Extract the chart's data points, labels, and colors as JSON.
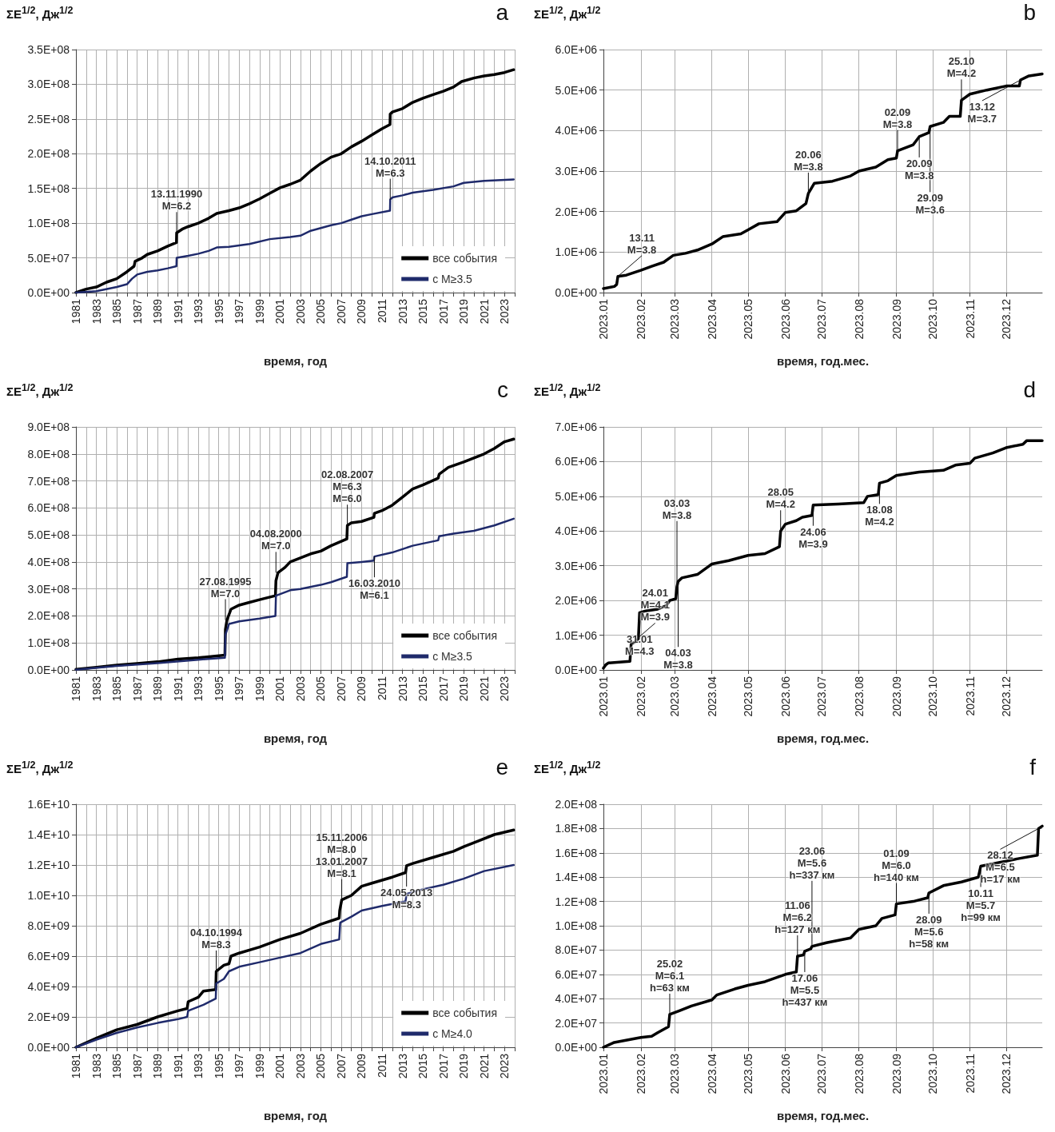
{
  "chart_data": [
    {
      "type": "line",
      "title": "a",
      "ylabel": "ΣE$^{1/2}$, Дж$^{1/2}$",
      "xlabel": "время, год",
      "grid": true,
      "legend": "bottom right",
      "xlim": [
        1981,
        2024
      ],
      "xticks": [
        1981,
        {
          "value": 1982,
          "label": null
        },
        1983,
        {
          "value": 1984,
          "label": null
        },
        1985,
        {
          "value": 1986,
          "label": null
        },
        1987,
        {
          "value": 1988,
          "label": null
        },
        1989,
        {
          "value": 1990,
          "label": null
        },
        1991,
        {
          "value": 1992,
          "label": null
        },
        1993,
        {
          "value": 1994,
          "label": null
        },
        1995,
        {
          "value": 1996,
          "label": null
        },
        1997,
        {
          "value": 1998,
          "label": null
        },
        1999,
        {
          "value": 2000,
          "label": null
        },
        2001,
        {
          "value": 2002,
          "label": null
        },
        2003,
        {
          "value": 2004,
          "label": null
        },
        2005,
        {
          "value": 2006,
          "label": null
        },
        2007,
        {
          "value": 2008,
          "label": null
        },
        2009,
        {
          "value": 2010,
          "label": null
        },
        2011,
        {
          "value": 2012,
          "label": null
        },
        2013,
        {
          "value": 2014,
          "label": null
        },
        2015,
        {
          "value": 2016,
          "label": null
        },
        2017,
        {
          "value": 2018,
          "label": null
        },
        2019,
        {
          "value": 2020,
          "label": null
        },
        2021,
        {
          "value": 2022,
          "label": null
        },
        2023,
        {
          "value": 2024,
          "label": null
        }
      ],
      "ylim": [
        0,
        350000000.0
      ],
      "yticks": [
        {
          "value": 0,
          "label": "0.0E+00"
        },
        {
          "value": 50000000.0,
          "label": "5.0E+07"
        },
        {
          "value": 100000000.0,
          "label": "1.0E+08"
        },
        {
          "value": 150000000.0,
          "label": "1.5E+08"
        },
        {
          "value": 200000000.0,
          "label": "2.0E+08"
        },
        {
          "value": 250000000.0,
          "label": "2.5E+08"
        },
        {
          "value": 300000000.0,
          "label": "3.0E+08"
        },
        {
          "value": 350000000.0,
          "label": "3.5E+08"
        }
      ],
      "series": [
        {
          "name": "все события",
          "color": "#000000",
          "x": [
            1981,
            1982,
            1983,
            1984,
            1985,
            1986,
            1986.7,
            1986.8,
            1987.5,
            1988,
            1989,
            1990,
            1990.85,
            1990.87,
            1991.5,
            1992,
            1993,
            1994,
            1994.8,
            1996,
            1997,
            1998,
            1999,
            2000,
            2001,
            2002,
            2003,
            2004,
            2005,
            2006,
            2007,
            2008,
            2009,
            2010,
            2011,
            2011.78,
            2011.8,
            2012,
            2013,
            2014,
            2015,
            2016,
            2017,
            2018,
            2018.8,
            2020,
            2021,
            2022,
            2023,
            2023.9
          ],
          "values": [
            0,
            5000000.0,
            8000000.0,
            15000000.0,
            20000000.0,
            30000000.0,
            38000000.0,
            45000000.0,
            50000000.0,
            55000000.0,
            60000000.0,
            67000000.0,
            72000000.0,
            86000000.0,
            92000000.0,
            95000000.0,
            100000000.0,
            107000000.0,
            114000000.0,
            118000000.0,
            122000000.0,
            128000000.0,
            135000000.0,
            143000000.0,
            151000000.0,
            156000000.0,
            162000000.0,
            175000000.0,
            186000000.0,
            195000000.0,
            200000000.0,
            210000000.0,
            218000000.0,
            227000000.0,
            236000000.0,
            242000000.0,
            257000000.0,
            260000000.0,
            265000000.0,
            274000000.0,
            280000000.0,
            285000000.0,
            290000000.0,
            296000000.0,
            304000000.0,
            309000000.0,
            312000000.0,
            314000000.0,
            317000000.0,
            321000000.0
          ]
        },
        {
          "name": "с M≥3.5",
          "color": "#1f2a6b",
          "x": [
            1981,
            1983,
            1985,
            1986,
            1986.5,
            1987,
            1988,
            1989,
            1990,
            1990.85,
            1990.87,
            1992,
            1993,
            1994,
            1994.8,
            1996,
            1998,
            2000,
            2002,
            2003,
            2004,
            2006,
            2007,
            2008,
            2009,
            2010,
            2011.78,
            2011.8,
            2012,
            2013,
            2014,
            2016,
            2018,
            2019,
            2021,
            2023.9
          ],
          "values": [
            0,
            2000000.0,
            8000000.0,
            12000000.0,
            20000000.0,
            26000000.0,
            30000000.0,
            32000000.0,
            35000000.0,
            38000000.0,
            50000000.0,
            53000000.0,
            56000000.0,
            60000000.0,
            65000000.0,
            66000000.0,
            70000000.0,
            77000000.0,
            80000000.0,
            82000000.0,
            89000000.0,
            97000000.0,
            100000000.0,
            105000000.0,
            110000000.0,
            113000000.0,
            118000000.0,
            134000000.0,
            137000000.0,
            140000000.0,
            144000000.0,
            148000000.0,
            153000000.0,
            158000000.0,
            161000000.0,
            163000000.0
          ]
        }
      ],
      "annotations": [
        {
          "text": "13.11.1990\nM=6.2",
          "x": 1990.87,
          "y": 86000000.0
        },
        {
          "text": "14.10.2011\nM=6.3",
          "x": 2011.8,
          "y": 134000000.0
        }
      ]
    },
    {
      "type": "line",
      "title": "b",
      "ylabel": "ΣE$^{1/2}$, Дж$^{1/2}$",
      "xlabel": "время, год.мес.",
      "grid": true,
      "xlim": [
        "2023-01-01",
        "2023-12-31"
      ],
      "xticks": [
        {
          "value": "2023-01-01",
          "label": "2023.01"
        },
        {
          "value": "2023-02-01",
          "label": "2023.02"
        },
        {
          "value": "2023-03-01",
          "label": "2023.03"
        },
        {
          "value": "2023-04-01",
          "label": "2023.04"
        },
        {
          "value": "2023-05-01",
          "label": "2023.05"
        },
        {
          "value": "2023-06-01",
          "label": "2023.06"
        },
        {
          "value": "2023-07-01",
          "label": "2023.07"
        },
        {
          "value": "2023-08-01",
          "label": "2023.08"
        },
        {
          "value": "2023-09-01",
          "label": "2023.09"
        },
        {
          "value": "2023-10-01",
          "label": "2023.10"
        },
        {
          "value": "2023-11-01",
          "label": "2023.11"
        },
        {
          "value": "2023-12-01",
          "label": "2023.12"
        }
      ],
      "ylim": [
        0,
        6000000.0
      ],
      "yticks": [
        {
          "value": 0,
          "label": "0.0E+00"
        },
        {
          "value": 1000000.0,
          "label": "1.0E+06"
        },
        {
          "value": 2000000.0,
          "label": "2.0E+06"
        },
        {
          "value": 3000000.0,
          "label": "3.0E+06"
        },
        {
          "value": 4000000.0,
          "label": "4.0E+06"
        },
        {
          "value": 5000000.0,
          "label": "5.0E+06"
        },
        {
          "value": 6000000.0,
          "label": "6.0E+06"
        }
      ],
      "series": [
        {
          "color": "#000000",
          "x": [
            "2023-01-01",
            "2023-01-10",
            "2023-01-12",
            "2023-01-13",
            "2023-01-20",
            "2023-02-01",
            "2023-02-10",
            "2023-02-20",
            "2023-02-28",
            "2023-03-10",
            "2023-03-20",
            "2023-04-01",
            "2023-04-10",
            "2023-04-25",
            "2023-05-01",
            "2023-05-10",
            "2023-05-25",
            "2023-06-01",
            "2023-06-10",
            "2023-06-18",
            "2023-06-20",
            "2023-06-25",
            "2023-07-10",
            "2023-07-25",
            "2023-08-01",
            "2023-08-15",
            "2023-08-25",
            "2023-09-01",
            "2023-09-02",
            "2023-09-15",
            "2023-09-20",
            "2023-09-28",
            "2023-09-29",
            "2023-10-10",
            "2023-10-15",
            "2023-10-24",
            "2023-10-25",
            "2023-11-01",
            "2023-11-15",
            "2023-12-01",
            "2023-12-12",
            "2023-12-13",
            "2023-12-20",
            "2023-12-31"
          ],
          "values": [
            100000.0,
            150000.0,
            200000.0,
            400000.0,
            430000.0,
            550000.0,
            650000.0,
            750000.0,
            920000.0,
            970000.0,
            1050000.0,
            1200000.0,
            1380000.0,
            1450000.0,
            1550000.0,
            1700000.0,
            1750000.0,
            1980000.0,
            2020000.0,
            2200000.0,
            2450000.0,
            2700000.0,
            2750000.0,
            2880000.0,
            3000000.0,
            3100000.0,
            3280000.0,
            3320000.0,
            3500000.0,
            3650000.0,
            3850000.0,
            3950000.0,
            4100000.0,
            4200000.0,
            4350000.0,
            4350000.0,
            4750000.0,
            4900000.0,
            5000000.0,
            5100000.0,
            5100000.0,
            5250000.0,
            5350000.0,
            5400000.0
          ]
        }
      ],
      "annotations": [
        {
          "text": "13.11\nM=3.8",
          "x": "2023-01-13",
          "y": 400000.0
        },
        {
          "text": "20.06\nM=3.8",
          "x": "2023-06-20",
          "y": 2450000.0
        },
        {
          "text": "02.09\nM=3.8",
          "x": "2023-09-02",
          "y": 3500000.0
        },
        {
          "text": "20.09\nM=3.8",
          "x": "2023-09-20",
          "y": 3850000.0
        },
        {
          "text": "29.09\nM=3.6",
          "x": "2023-09-29",
          "y": 4100000.0
        },
        {
          "text": "25.10\nM=4.2",
          "x": "2023-10-25",
          "y": 4750000.0
        },
        {
          "text": "13.12\nM=3.7",
          "x": "2023-12-13",
          "y": 5250000.0
        }
      ]
    },
    {
      "type": "line",
      "title": "c",
      "ylabel": "ΣE$^{1/2}$, Дж$^{1/2}$",
      "xlabel": "время, год",
      "grid": true,
      "legend": "bottom right",
      "xlim": [
        1981,
        2024
      ],
      "xticks": [
        1981,
        {
          "value": 1982,
          "label": null
        },
        1983,
        {
          "value": 1984,
          "label": null
        },
        1985,
        {
          "value": 1986,
          "label": null
        },
        1987,
        {
          "value": 1988,
          "label": null
        },
        1989,
        {
          "value": 1990,
          "label": null
        },
        1991,
        {
          "value": 1992,
          "label": null
        },
        1993,
        {
          "value": 1994,
          "label": null
        },
        1995,
        {
          "value": 1996,
          "label": null
        },
        1997,
        {
          "value": 1998,
          "label": null
        },
        1999,
        {
          "value": 2000,
          "label": null
        },
        2001,
        {
          "value": 2002,
          "label": null
        },
        2003,
        {
          "value": 2004,
          "label": null
        },
        2005,
        {
          "value": 2006,
          "label": null
        },
        2007,
        {
          "value": 2008,
          "label": null
        },
        2009,
        {
          "value": 2010,
          "label": null
        },
        2011,
        {
          "value": 2012,
          "label": null
        },
        2013,
        {
          "value": 2014,
          "label": null
        },
        2015,
        {
          "value": 2016,
          "label": null
        },
        2017,
        {
          "value": 2018,
          "label": null
        },
        2019,
        {
          "value": 2020,
          "label": null
        },
        2021,
        {
          "value": 2022,
          "label": null
        },
        2023,
        {
          "value": 2024,
          "label": null
        }
      ],
      "ylim": [
        0,
        900000000.0
      ],
      "yticks": [
        {
          "value": 0,
          "label": "0.0E+00"
        },
        {
          "value": 100000000.0,
          "label": "1.0E+08"
        },
        {
          "value": 200000000.0,
          "label": "2.0E+08"
        },
        {
          "value": 300000000.0,
          "label": "3.0E+08"
        },
        {
          "value": 400000000.0,
          "label": "4.0E+08"
        },
        {
          "value": 500000000.0,
          "label": "5.0E+08"
        },
        {
          "value": 600000000.0,
          "label": "6.0E+08"
        },
        {
          "value": 700000000.0,
          "label": "7.0E+08"
        },
        {
          "value": 800000000.0,
          "label": "8.0E+08"
        },
        {
          "value": 900000000.0,
          "label": "9.0E+08"
        }
      ],
      "series": [
        {
          "name": "все события",
          "color": "#000000",
          "x": [
            1981,
            1983,
            1985,
            1987,
            1989,
            1991,
            1993,
            1995.6,
            1995.65,
            1995.8,
            1996.2,
            1997,
            1998,
            1999,
            2000.55,
            2000.6,
            2000.8,
            2001.5,
            2002,
            2003,
            2004,
            2005,
            2006,
            2007.55,
            2007.6,
            2008,
            2009,
            2010.2,
            2010.25,
            2011,
            2012,
            2013,
            2014,
            2015,
            2016.5,
            2016.6,
            2017.5,
            2019,
            2020,
            2021,
            2022,
            2023,
            2023.9
          ],
          "values": [
            2000000.0,
            10000000.0,
            18000000.0,
            24000000.0,
            30000000.0,
            40000000.0,
            45000000.0,
            55000000.0,
            150000000.0,
            185000000.0,
            225000000.0,
            240000000.0,
            250000000.0,
            260000000.0,
            275000000.0,
            330000000.0,
            360000000.0,
            380000000.0,
            400000000.0,
            415000000.0,
            430000000.0,
            440000000.0,
            460000000.0,
            485000000.0,
            535000000.0,
            545000000.0,
            550000000.0,
            565000000.0,
            580000000.0,
            590000000.0,
            610000000.0,
            640000000.0,
            670000000.0,
            685000000.0,
            710000000.0,
            725000000.0,
            750000000.0,
            770000000.0,
            785000000.0,
            800000000.0,
            820000000.0,
            845000000.0,
            855000000.0
          ]
        },
        {
          "name": "с M≥3.5",
          "color": "#1f2a6b",
          "x": [
            1981,
            1985,
            1989,
            1993,
            1995.6,
            1995.65,
            1996,
            1997,
            1999,
            2000.55,
            2000.6,
            2002,
            2003,
            2005,
            2006,
            2007.55,
            2007.6,
            2009,
            2010.2,
            2010.25,
            2012,
            2014,
            2016.5,
            2016.6,
            2018,
            2020,
            2022,
            2023.9
          ],
          "values": [
            1000000.0,
            15000000.0,
            25000000.0,
            38000000.0,
            45000000.0,
            130000000.0,
            170000000.0,
            180000000.0,
            190000000.0,
            200000000.0,
            275000000.0,
            295000000.0,
            300000000.0,
            315000000.0,
            325000000.0,
            345000000.0,
            395000000.0,
            400000000.0,
            405000000.0,
            420000000.0,
            435000000.0,
            460000000.0,
            480000000.0,
            495000000.0,
            505000000.0,
            515000000.0,
            535000000.0,
            560000000.0
          ]
        }
      ],
      "annotations": [
        {
          "text": "27.08.1995\nM=7.0",
          "x": 1995.65,
          "y": 185000000.0
        },
        {
          "text": "04.08.2000\nM=7.0",
          "x": 2000.6,
          "y": 360000000.0
        },
        {
          "text": "02.08.2007\nM=6.3\nM=6.0",
          "x": 2007.6,
          "y": 535000000.0
        },
        {
          "text": "16.03.2010\nM=6.1",
          "x": 2010.25,
          "y": 420000000.0
        }
      ]
    },
    {
      "type": "line",
      "title": "d",
      "ylabel": "ΣE$^{1/2}$, Дж$^{1/2}$",
      "xlabel": "время, год.мес.",
      "grid": true,
      "xlim": [
        "2023-01-01",
        "2023-12-31"
      ],
      "xticks": [
        {
          "value": "2023-01-01",
          "label": "2023.01"
        },
        {
          "value": "2023-02-01",
          "label": "2023.02"
        },
        {
          "value": "2023-03-01",
          "label": "2023.03"
        },
        {
          "value": "2023-04-01",
          "label": "2023.04"
        },
        {
          "value": "2023-05-01",
          "label": "2023.05"
        },
        {
          "value": "2023-06-01",
          "label": "2023.06"
        },
        {
          "value": "2023-07-01",
          "label": "2023.07"
        },
        {
          "value": "2023-08-01",
          "label": "2023.08"
        },
        {
          "value": "2023-09-01",
          "label": "2023.09"
        },
        {
          "value": "2023-10-01",
          "label": "2023.10"
        },
        {
          "value": "2023-11-01",
          "label": "2023.11"
        },
        {
          "value": "2023-12-01",
          "label": "2023.12"
        }
      ],
      "ylim": [
        0,
        7000000.0
      ],
      "yticks": [
        {
          "value": 0,
          "label": "0.0E+00"
        },
        {
          "value": 1000000.0,
          "label": "1.0E+06"
        },
        {
          "value": 2000000.0,
          "label": "2.0E+06"
        },
        {
          "value": 3000000.0,
          "label": "3.0E+06"
        },
        {
          "value": 4000000.0,
          "label": "4.0E+06"
        },
        {
          "value": 5000000.0,
          "label": "5.0E+06"
        },
        {
          "value": 6000000.0,
          "label": "6.0E+06"
        },
        {
          "value": 7000000.0,
          "label": "7.0E+06"
        }
      ],
      "series": [
        {
          "color": "#000000",
          "x": [
            "2023-01-01",
            "2023-01-03",
            "2023-01-05",
            "2023-01-23",
            "2023-01-24",
            "2023-01-27",
            "2023-01-30",
            "2023-01-31",
            "2023-02-05",
            "2023-02-15",
            "2023-02-22",
            "2023-02-25",
            "2023-03-02",
            "2023-03-03",
            "2023-03-04",
            "2023-03-07",
            "2023-03-20",
            "2023-03-28",
            "2023-04-01",
            "2023-04-15",
            "2023-05-01",
            "2023-05-15",
            "2023-05-27",
            "2023-05-28",
            "2023-06-01",
            "2023-06-10",
            "2023-06-15",
            "2023-06-23",
            "2023-06-24",
            "2023-07-15",
            "2023-08-05",
            "2023-08-08",
            "2023-08-17",
            "2023-08-18",
            "2023-08-25",
            "2023-09-01",
            "2023-09-20",
            "2023-10-10",
            "2023-10-20",
            "2023-11-01",
            "2023-11-05",
            "2023-11-20",
            "2023-12-01",
            "2023-12-15",
            "2023-12-18",
            "2023-12-31"
          ],
          "values": [
            50000.0,
            150000.0,
            200000.0,
            250000.0,
            750000.0,
            800000.0,
            900000.0,
            1650000.0,
            1700000.0,
            1750000.0,
            1850000.0,
            2000000.0,
            2050000.0,
            2400000.0,
            2550000.0,
            2650000.0,
            2750000.0,
            2950000.0,
            3050000.0,
            3150000.0,
            3300000.0,
            3350000.0,
            3550000.0,
            4000000.0,
            4200000.0,
            4300000.0,
            4400000.0,
            4450000.0,
            4750000.0,
            4780000.0,
            4820000.0,
            5000000.0,
            5050000.0,
            5380000.0,
            5450000.0,
            5600000.0,
            5700000.0,
            5750000.0,
            5900000.0,
            5950000.0,
            6100000.0,
            6250000.0,
            6400000.0,
            6500000.0,
            6600000.0,
            6600000.0
          ]
        }
      ],
      "annotations": [
        {
          "text": "24.01\nM=4.1\nM=3.9",
          "x": "2023-01-24",
          "y": 750000.0
        },
        {
          "text": "31.01\nM=4.3",
          "x": "2023-01-31",
          "y": 1650000.0
        },
        {
          "text": "03.03\nM=3.8",
          "x": "2023-03-03",
          "y": 2400000.0
        },
        {
          "text": "04.03\nM=3.8",
          "x": "2023-03-04",
          "y": 2550000.0
        },
        {
          "text": "28.05\nM=4.2",
          "x": "2023-05-28",
          "y": 4000000.0
        },
        {
          "text": "24.06\nM=3.9",
          "x": "2023-06-24",
          "y": 4750000.0
        },
        {
          "text": "18.08\nM=4.2",
          "x": "2023-08-18",
          "y": 5380000.0
        }
      ]
    },
    {
      "type": "line",
      "title": "e",
      "ylabel": "ΣE$^{1/2}$, Дж$^{1/2}$",
      "xlabel": "время, год",
      "grid": true,
      "legend": "bottom right",
      "xlim": [
        1981,
        2024
      ],
      "xticks": [
        1981,
        {
          "value": 1982,
          "label": null
        },
        1983,
        {
          "value": 1984,
          "label": null
        },
        1985,
        {
          "value": 1986,
          "label": null
        },
        1987,
        {
          "value": 1988,
          "label": null
        },
        1989,
        {
          "value": 1990,
          "label": null
        },
        1991,
        {
          "value": 1992,
          "label": null
        },
        1993,
        {
          "value": 1994,
          "label": null
        },
        1995,
        {
          "value": 1996,
          "label": null
        },
        1997,
        {
          "value": 1998,
          "label": null
        },
        1999,
        {
          "value": 2000,
          "label": null
        },
        2001,
        {
          "value": 2002,
          "label": null
        },
        2003,
        {
          "value": 2004,
          "label": null
        },
        2005,
        {
          "value": 2006,
          "label": null
        },
        2007,
        {
          "value": 2008,
          "label": null
        },
        2009,
        {
          "value": 2010,
          "label": null
        },
        2011,
        {
          "value": 2012,
          "label": null
        },
        2013,
        {
          "value": 2014,
          "label": null
        },
        2015,
        {
          "value": 2016,
          "label": null
        },
        2017,
        {
          "value": 2018,
          "label": null
        },
        2019,
        {
          "value": 2020,
          "label": null
        },
        2021,
        {
          "value": 2022,
          "label": null
        },
        2023,
        {
          "value": 2024,
          "label": null
        }
      ],
      "ylim": [
        0,
        16000000000.0
      ],
      "yticks": [
        {
          "value": 0,
          "label": "0.0E+00"
        },
        {
          "value": 2000000000.0,
          "label": "2.0E+09"
        },
        {
          "value": 4000000000.0,
          "label": "4.0E+09"
        },
        {
          "value": 6000000000.0,
          "label": "6.0E+09"
        },
        {
          "value": 8000000000.0,
          "label": "8.0E+09"
        },
        {
          "value": 10000000000.0,
          "label": "1.0E+10"
        },
        {
          "value": 12000000000.0,
          "label": "1.2E+10"
        },
        {
          "value": 14000000000.0,
          "label": "1.4E+10"
        },
        {
          "value": 16000000000.0,
          "label": "1.6E+10"
        }
      ],
      "series": [
        {
          "name": "все события",
          "color": "#000000",
          "x": [
            1981,
            1983,
            1985,
            1987,
            1989,
            1991,
            1991.9,
            1992,
            1993,
            1993.5,
            1994.7,
            1994.75,
            1995.5,
            1996,
            1996.2,
            1997,
            1999,
            2001,
            2003,
            2005,
            2006.8,
            2006.85,
            2007.05,
            2008,
            2009,
            2010,
            2011,
            2012,
            2013.3,
            2013.4,
            2014,
            2016,
            2018,
            2019,
            2020.5,
            2022,
            2023.9
          ],
          "values": [
            0,
            600000000.0,
            1150000000.0,
            1500000000.0,
            2000000000.0,
            2400000000.0,
            2550000000.0,
            3000000000.0,
            3300000000.0,
            3700000000.0,
            3800000000.0,
            5000000000.0,
            5400000000.0,
            5500000000.0,
            6000000000.0,
            6200000000.0,
            6600000000.0,
            7100000000.0,
            7500000000.0,
            8100000000.0,
            8500000000.0,
            9000000000.0,
            9700000000.0,
            10000000000.0,
            10600000000.0,
            10800000000.0,
            11000000000.0,
            11200000000.0,
            11500000000.0,
            11950000000.0,
            12100000000.0,
            12500000000.0,
            12900000000.0,
            13200000000.0,
            13600000000.0,
            14000000000.0,
            14300000000.0
          ]
        },
        {
          "name": "с M≥4.0",
          "color": "#1f2a6b",
          "x": [
            1981,
            1983,
            1985,
            1987,
            1989,
            1991,
            1991.9,
            1992,
            1993.5,
            1994.7,
            1994.75,
            1995.5,
            1996,
            1997,
            1999,
            2001,
            2003,
            2005,
            2006.8,
            2006.9,
            2008,
            2009,
            2011,
            2013.3,
            2013.4,
            2015,
            2017,
            2019,
            2021,
            2023.9
          ],
          "values": [
            0,
            500000000.0,
            950000000.0,
            1300000000.0,
            1600000000.0,
            1850000000.0,
            2000000000.0,
            2400000000.0,
            2800000000.0,
            3200000000.0,
            4200000000.0,
            4500000000.0,
            5000000000.0,
            5300000000.0,
            5600000000.0,
            5900000000.0,
            6200000000.0,
            6800000000.0,
            7100000000.0,
            8200000000.0,
            8600000000.0,
            9000000000.0,
            9300000000.0,
            9600000000.0,
            10100000000.0,
            10400000000.0,
            10700000000.0,
            11100000000.0,
            11600000000.0,
            12000000000.0
          ]
        }
      ],
      "annotations": [
        {
          "text": "04.10.1994\nM=8.3",
          "x": 1994.75,
          "y": 5000000000.0
        },
        {
          "text": "15.11.2006\nM=8.0\n13.01.2007\nM=8.1",
          "x": 2007.05,
          "y": 9700000000.0
        },
        {
          "text": "24.05.2013\nM=8.3",
          "x": 2013.4,
          "y": 11950000000.0
        }
      ]
    },
    {
      "type": "line",
      "title": "f",
      "ylabel": "ΣE$^{1/2}$, Дж$^{1/2}$",
      "xlabel": "время, год.мес.",
      "grid": true,
      "xlim": [
        "2023-01-01",
        "2023-12-31"
      ],
      "xticks": [
        {
          "value": "2023-01-01",
          "label": "2023.01"
        },
        {
          "value": "2023-02-01",
          "label": "2023.02"
        },
        {
          "value": "2023-03-01",
          "label": "2023.03"
        },
        {
          "value": "2023-04-01",
          "label": "2023.04"
        },
        {
          "value": "2023-05-01",
          "label": "2023.05"
        },
        {
          "value": "2023-06-01",
          "label": "2023.06"
        },
        {
          "value": "2023-07-01",
          "label": "2023.07"
        },
        {
          "value": "2023-08-01",
          "label": "2023.08"
        },
        {
          "value": "2023-09-01",
          "label": "2023.09"
        },
        {
          "value": "2023-10-01",
          "label": "2023.10"
        },
        {
          "value": "2023-11-01",
          "label": "2023.11"
        },
        {
          "value": "2023-12-01",
          "label": "2023.12"
        }
      ],
      "ylim": [
        0,
        200000000.0
      ],
      "yticks": [
        {
          "value": 0,
          "label": "0.0E+00"
        },
        {
          "value": 20000000.0,
          "label": "2.0E+07"
        },
        {
          "value": 40000000.0,
          "label": "4.0E+07"
        },
        {
          "value": 60000000.0,
          "label": "6.0E+07"
        },
        {
          "value": 80000000.0,
          "label": "8.0E+07"
        },
        {
          "value": 100000000.0,
          "label": "1.0E+08"
        },
        {
          "value": 120000000.0,
          "label": "1.2E+08"
        },
        {
          "value": 140000000.0,
          "label": "1.4E+08"
        },
        {
          "value": 160000000.0,
          "label": "1.6E+08"
        },
        {
          "value": 180000000.0,
          "label": "1.8E+08"
        },
        {
          "value": 200000000.0,
          "label": "2.0E+08"
        }
      ],
      "series": [
        {
          "color": "#000000",
          "x": [
            "2023-01-01",
            "2023-01-10",
            "2023-02-01",
            "2023-02-10",
            "2023-02-15",
            "2023-02-24",
            "2023-02-25",
            "2023-03-05",
            "2023-03-15",
            "2023-04-01",
            "2023-04-05",
            "2023-04-20",
            "2023-05-01",
            "2023-05-15",
            "2023-06-01",
            "2023-06-10",
            "2023-06-11",
            "2023-06-16",
            "2023-06-17",
            "2023-06-22",
            "2023-06-23",
            "2023-07-05",
            "2023-07-25",
            "2023-08-01",
            "2023-08-15",
            "2023-08-20",
            "2023-08-31",
            "2023-09-01",
            "2023-09-15",
            "2023-09-27",
            "2023-09-28",
            "2023-10-10",
            "2023-10-25",
            "2023-11-08",
            "2023-11-10",
            "2023-11-25",
            "2023-12-10",
            "2023-12-27",
            "2023-12-28",
            "2023-12-31"
          ],
          "values": [
            0,
            4000000.0,
            8000000.0,
            9000000.0,
            12000000.0,
            17000000.0,
            27000000.0,
            30000000.0,
            34000000.0,
            39000000.0,
            43000000.0,
            48000000.0,
            51000000.0,
            54000000.0,
            60000000.0,
            62000000.0,
            75000000.0,
            76000000.0,
            79000000.0,
            81000000.0,
            83000000.0,
            86000000.0,
            90000000.0,
            97000000.0,
            100000000.0,
            106000000.0,
            109000000.0,
            118000000.0,
            120000000.0,
            123000000.0,
            127000000.0,
            133000000.0,
            136000000.0,
            140000000.0,
            149000000.0,
            152000000.0,
            155000000.0,
            158000000.0,
            180000000.0,
            182000000.0
          ]
        }
      ],
      "annotations": [
        {
          "text": "25.02\nM=6.1\nh=63 км",
          "x": "2023-02-25",
          "y": 27000000.0
        },
        {
          "text": "11.06\nM=6.2\nh=127 км",
          "x": "2023-06-11",
          "y": 75000000.0
        },
        {
          "text": "17.06\nM=5.5\nh=437 км",
          "x": "2023-06-17",
          "y": 79000000.0
        },
        {
          "text": "23.06\nM=5.6\nh=337 км",
          "x": "2023-06-23",
          "y": 83000000.0
        },
        {
          "text": "01.09\nM=6.0\nh=140 км",
          "x": "2023-09-01",
          "y": 118000000.0
        },
        {
          "text": "28.09\nM=5.6\nh=58 км",
          "x": "2023-09-28",
          "y": 127000000.0
        },
        {
          "text": "10.11\nM=5.7\nh=99 км",
          "x": "2023-11-10",
          "y": 149000000.0
        },
        {
          "text": "28.12\nM=6.5\nh=17 км",
          "x": "2023-12-28",
          "y": 180000000.0
        }
      ]
    }
  ]
}
